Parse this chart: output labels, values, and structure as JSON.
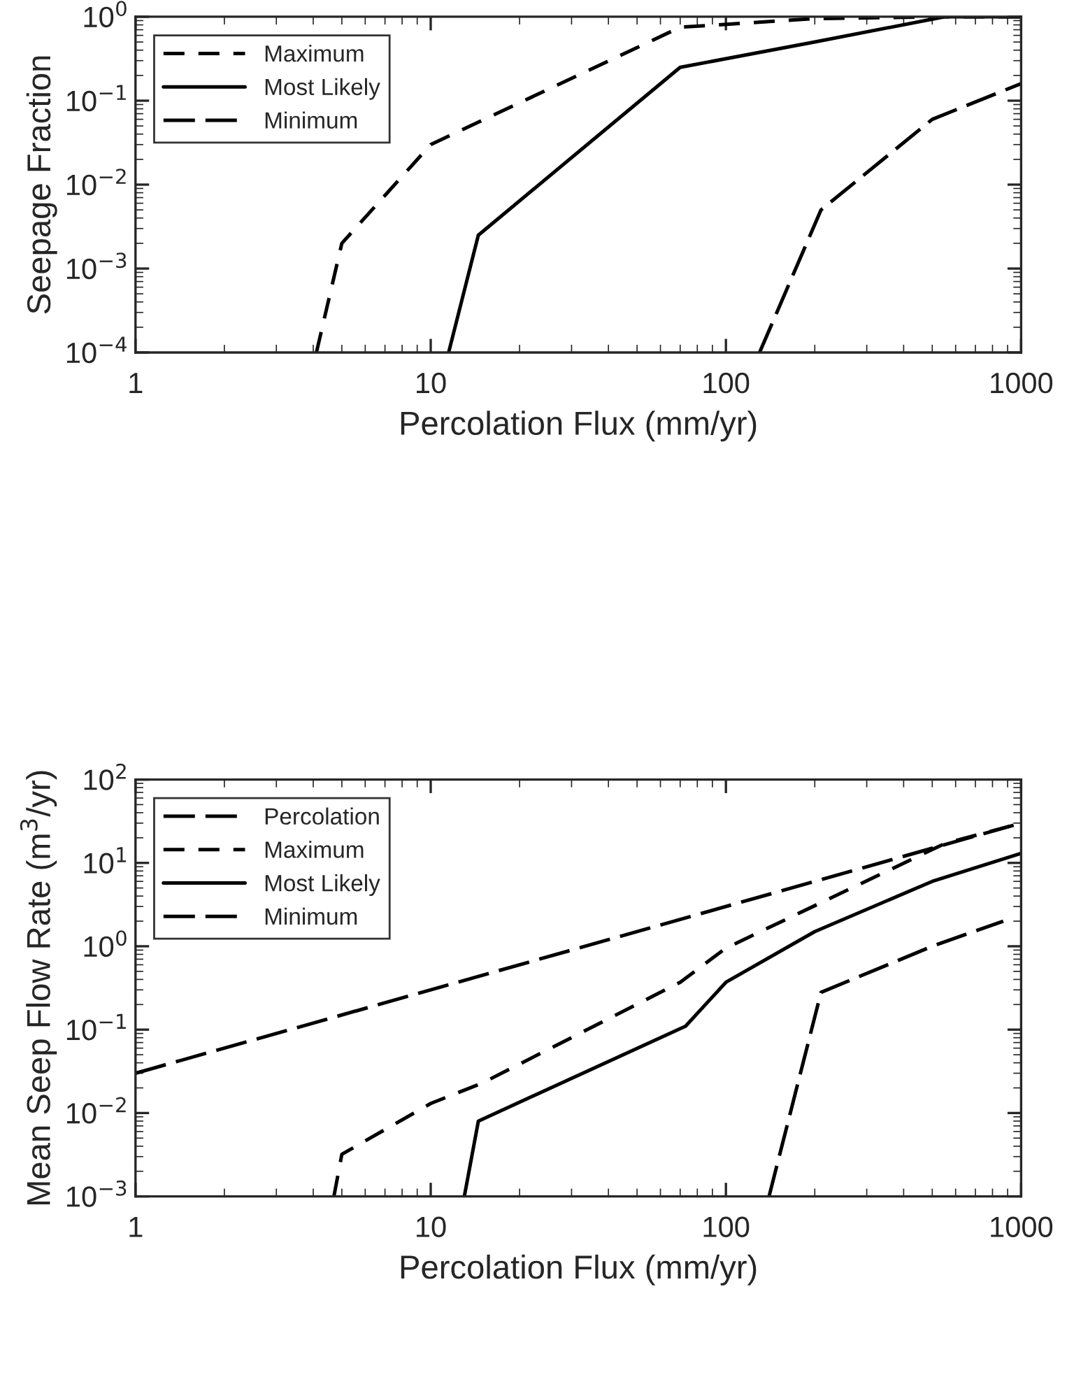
{
  "chart_data": [
    {
      "type": "line",
      "xlabel": "Percolation Flux (mm/yr)",
      "ylabel": "Seepage Fraction",
      "log": "xy",
      "legend": "top left",
      "grid": false,
      "xlim": [
        1,
        1000
      ],
      "xticks": [
        1,
        10,
        100,
        1000
      ],
      "ylim": [
        0.0001,
        1
      ],
      "yticks": [
        {
          "value": 0.0001,
          "label": "10$^{−4}$"
        },
        {
          "value": 0.001,
          "label": "10$^{−3}$"
        },
        {
          "value": 0.01,
          "label": "10$^{−2}$"
        },
        {
          "value": 0.1,
          "label": "10$^{−1}$"
        },
        {
          "value": 1,
          "label": "10$^{0}$"
        }
      ],
      "series": [
        {
          "name": "Maximum",
          "color": "#000000",
          "line_style": "dashed",
          "x": [
            4.1,
            5,
            10,
            70,
            200,
            550,
            1000
          ],
          "values": [
            0.0001,
            0.002,
            0.03,
            0.75,
            0.95,
            1,
            1
          ]
        },
        {
          "name": "Most Likely",
          "color": "#000000",
          "line_style": "solid",
          "x": [
            11.5,
            14.5,
            70,
            200,
            550,
            1000
          ],
          "values": [
            0.0001,
            0.0025,
            0.25,
            0.5,
            1,
            1
          ]
        },
        {
          "name": "Minimum",
          "color": "#000000",
          "line_style": "longdash",
          "x": [
            130,
            210,
            500,
            1000
          ],
          "values": [
            0.0001,
            0.005,
            0.06,
            0.16
          ]
        }
      ]
    },
    {
      "type": "line",
      "xlabel": "Percolation Flux (mm/yr)",
      "ylabel": "Mean Seep Flow Rate (m$^{3}$/yr)",
      "log": "xy",
      "legend": "top left",
      "grid": false,
      "xlim": [
        1,
        1000
      ],
      "xticks": [
        1,
        10,
        100,
        1000
      ],
      "ylim": [
        0.001,
        100
      ],
      "yticks": [
        {
          "value": 0.001,
          "label": "10$^{−3}$"
        },
        {
          "value": 0.01,
          "label": "10$^{−2}$"
        },
        {
          "value": 0.1,
          "label": "10$^{−1}$"
        },
        {
          "value": 1,
          "label": "10$^{0}$"
        },
        {
          "value": 10,
          "label": "10$^{1}$"
        },
        {
          "value": 100,
          "label": "10$^{2}$"
        }
      ],
      "series": [
        {
          "name": "Percolation",
          "color": "#000000",
          "line_style": "longdash",
          "x": [
            1,
            1000
          ],
          "values": [
            0.03,
            30
          ]
        },
        {
          "name": "Maximum",
          "color": "#000000",
          "line_style": "dashed",
          "x": [
            4.7,
            5,
            10,
            15,
            70,
            100,
            550,
            1000
          ],
          "values": [
            0.001,
            0.0032,
            0.013,
            0.023,
            0.37,
            0.95,
            17,
            30
          ]
        },
        {
          "name": "Most Likely",
          "color": "#000000",
          "line_style": "solid",
          "x": [
            13,
            14.5,
            73,
            100,
            200,
            500,
            1000
          ],
          "values": [
            0.001,
            0.008,
            0.11,
            0.37,
            1.5,
            6,
            13
          ]
        },
        {
          "name": "Minimum",
          "color": "#000000",
          "line_style": "longdash",
          "x": [
            140,
            210,
            500,
            870
          ],
          "values": [
            0.001,
            0.28,
            1.0,
            2
          ]
        }
      ]
    }
  ]
}
